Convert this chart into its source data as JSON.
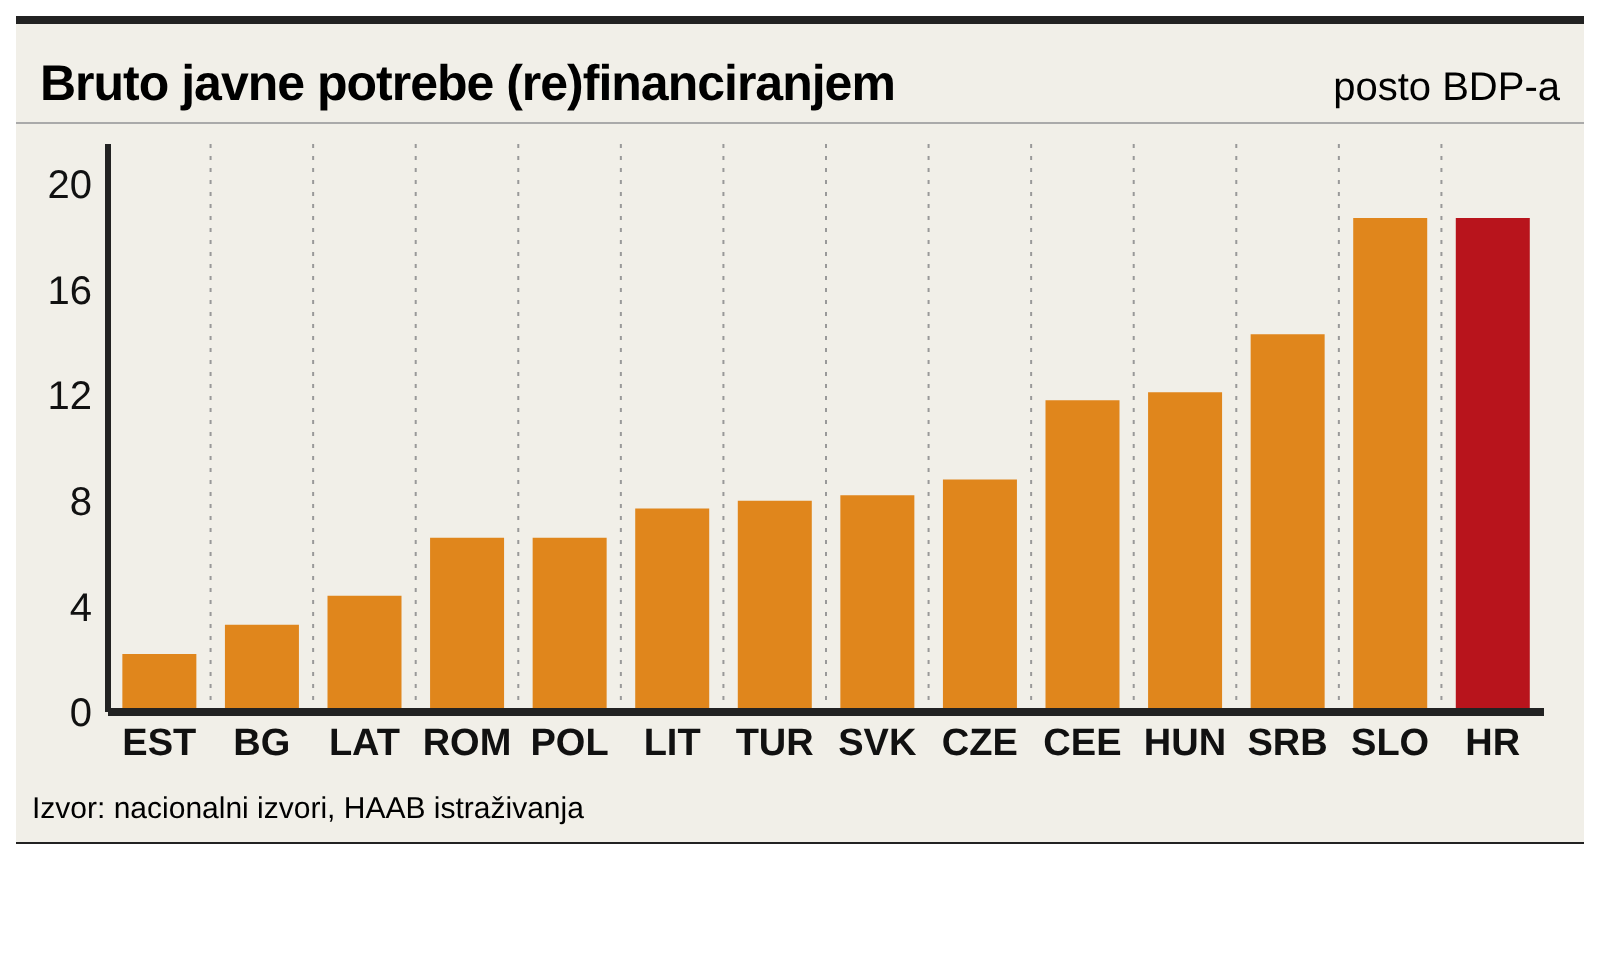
{
  "chart_data": {
    "type": "bar",
    "title": "Bruto javne potrebe (re)financiranjem",
    "subtitle": "posto BDP-a",
    "categories": [
      "EST",
      "BG",
      "LAT",
      "ROM",
      "POL",
      "LIT",
      "TUR",
      "SVK",
      "CZE",
      "CEE",
      "HUN",
      "SRB",
      "SLO",
      "HR"
    ],
    "values": [
      2.2,
      3.3,
      4.4,
      6.6,
      6.6,
      7.7,
      8.0,
      8.2,
      8.8,
      11.8,
      12.1,
      14.3,
      18.7,
      18.7
    ],
    "colors": [
      "#e0861c",
      "#e0861c",
      "#e0861c",
      "#e0861c",
      "#e0861c",
      "#e0861c",
      "#e0861c",
      "#e0861c",
      "#e0861c",
      "#e0861c",
      "#e0861c",
      "#e0861c",
      "#e0861c",
      "#b8141c"
    ],
    "ylim": [
      0,
      21.5
    ],
    "yticks": [
      0,
      4,
      8,
      12,
      16,
      20
    ],
    "grid": "x",
    "annotations": [
      "Izvor: nacionalni izvori, HAAB istraživanja"
    ]
  }
}
